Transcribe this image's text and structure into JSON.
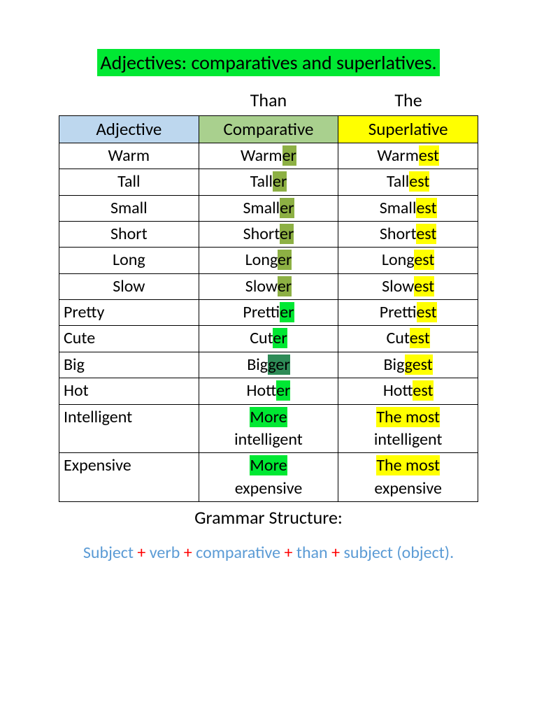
{
  "colors": {
    "title_bg": "#00e833",
    "adj_header_bg": "#bdd7ee",
    "comp_header_bg": "#a9d08e",
    "sup_header_bg": "#ffff00",
    "olive": "#8db044",
    "green": "#00e833",
    "darkgreen": "#2e8b57",
    "yellow": "#ffff00",
    "struct_text": "#5b9bd5",
    "plus": "#ff0000"
  },
  "title": "Adjectives: comparatives and superlatives.",
  "hints": {
    "than": "Than",
    "the": "The"
  },
  "headers": {
    "adj": "Adjective",
    "comp": "Comparative",
    "sup": "Superlative"
  },
  "rows": [
    {
      "align": "center",
      "adj": "Warm",
      "comp_pre": "Warm",
      "comp_hl": "er",
      "comp_hl_c": "olive",
      "sup_pre": "Warm",
      "sup_hl": "est"
    },
    {
      "align": "center",
      "adj": "Tall",
      "comp_pre": "Tall",
      "comp_hl": "er",
      "comp_hl_c": "olive",
      "sup_pre": "Tall",
      "sup_hl": "est"
    },
    {
      "align": "center",
      "adj": "Small",
      "comp_pre": "Small",
      "comp_hl": "er",
      "comp_hl_c": "olive",
      "sup_pre": "Small",
      "sup_hl": "est"
    },
    {
      "align": "center",
      "adj": "Short",
      "comp_pre": "Short",
      "comp_hl": "er",
      "comp_hl_c": "olive",
      "sup_pre": "Short",
      "sup_hl": "est"
    },
    {
      "align": "center",
      "adj": "Long",
      "comp_pre": "Long",
      "comp_hl": "er",
      "comp_hl_c": "olive",
      "sup_pre": "Long",
      "sup_hl": "est"
    },
    {
      "align": "center",
      "adj": "Slow",
      "comp_pre": "Slow",
      "comp_hl": "er",
      "comp_hl_c": "olive",
      "sup_pre": "Slow",
      "sup_hl": "est"
    },
    {
      "align": "left",
      "adj": "Pretty",
      "comp_pre": "Prett",
      "comp_hl": "ier",
      "comp_hl_c": "green",
      "comp_align": "center",
      "sup_pre": "Prett",
      "sup_hl": "iest",
      "sup_align": "center"
    },
    {
      "align": "left",
      "adj": "Cute",
      "comp_pre": "Cut",
      "comp_hl": "er",
      "comp_hl_c": "green",
      "comp_align": "center",
      "sup_pre": "Cut",
      "sup_hl": "est",
      "sup_align": "center"
    },
    {
      "align": "left",
      "adj": "Big",
      "comp_pre": "Big",
      "comp_hl": "ger",
      "comp_hl_c": "darkgreen",
      "comp_align": "center",
      "sup_pre": "Big",
      "sup_hl": "gest",
      "sup_align": "center"
    },
    {
      "align": "left",
      "adj": "Hot",
      "comp_pre": "Hot",
      "comp_hl": "ter",
      "comp_hl_c": "green",
      "comp_align": "center",
      "sup_pre": "Hot",
      "sup_hl": "test",
      "sup_align": "center"
    },
    {
      "align": "left",
      "adj": "Intelligent",
      "comp_word_hl": "More",
      "comp_word_hl_c": "green",
      "comp_line2": "intelligent",
      "sup_word_hl": "The most",
      "sup_line2": "intelligent"
    },
    {
      "align": "left",
      "adj": "Expensive",
      "comp_word_hl": "More",
      "comp_word_hl_c": "green",
      "comp_line2": "expensive",
      "sup_word_hl": "The most",
      "sup_line2": "expensive"
    }
  ],
  "structure_label": "Grammar Structure:",
  "structure_parts": [
    "Subject",
    "verb",
    "comparative",
    "than",
    "subject (object)."
  ]
}
